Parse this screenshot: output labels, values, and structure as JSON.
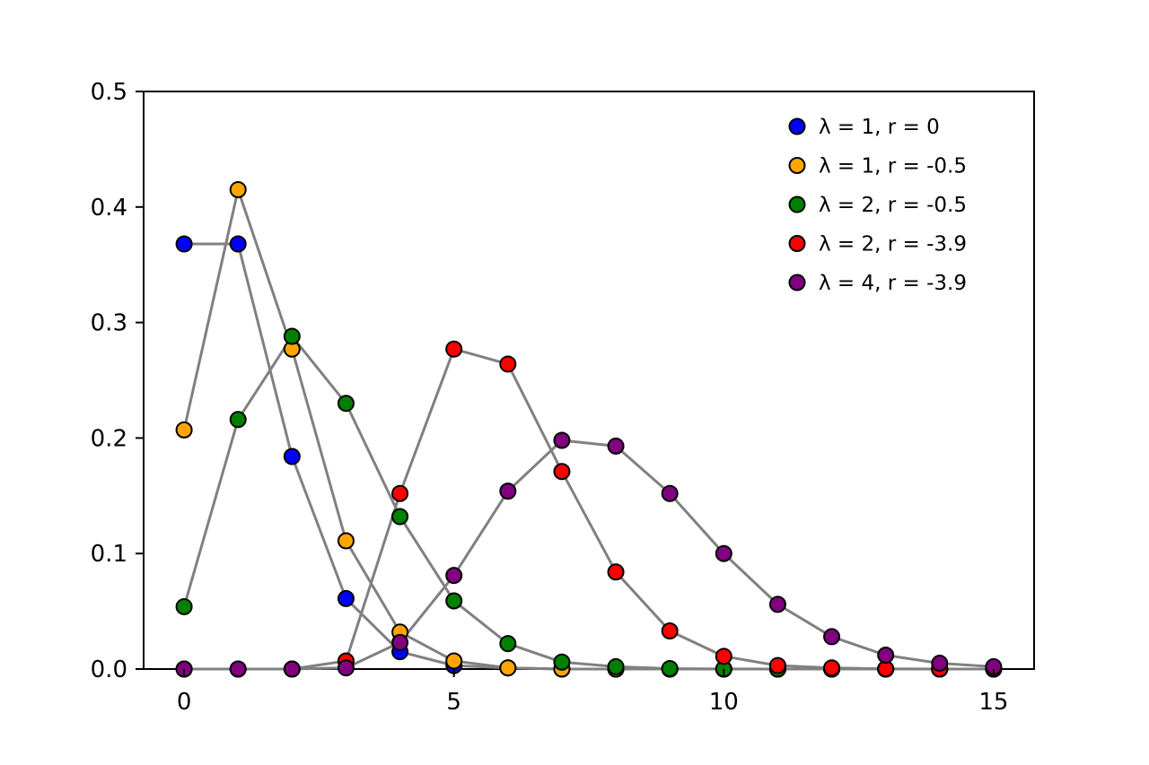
{
  "chart_data": {
    "type": "scatter",
    "title": "",
    "xlabel": "",
    "ylabel": "",
    "xlim": [
      -0.75,
      15.75
    ],
    "ylim": [
      0,
      0.5
    ],
    "grid": false,
    "legend_position": "top-right",
    "line_color": "#808080",
    "xticks": [
      "0",
      "5",
      "10",
      "15"
    ],
    "yticks": [
      "0.0",
      "0.1",
      "0.2",
      "0.3",
      "0.4",
      "0.5"
    ],
    "series": [
      {
        "name": "λ = 1, r = 0",
        "color": "#0000ff",
        "x": [
          0,
          1,
          2,
          3,
          4,
          5,
          6,
          7,
          8,
          9,
          10,
          11,
          12,
          13,
          14,
          15
        ],
        "y": [
          0.368,
          0.368,
          0.184,
          0.061,
          0.015,
          0.003,
          0.001,
          0,
          0,
          0,
          0,
          0,
          0,
          0,
          0,
          0
        ]
      },
      {
        "name": "λ = 1, r = -0.5",
        "color": "#ffa500",
        "x": [
          0,
          1,
          2,
          3,
          4,
          5,
          6,
          7,
          8,
          9,
          10,
          11,
          12,
          13,
          14,
          15
        ],
        "y": [
          0.207,
          0.415,
          0.277,
          0.111,
          0.032,
          0.007,
          0.001,
          0,
          0,
          0,
          0,
          0,
          0,
          0,
          0,
          0
        ]
      },
      {
        "name": "λ = 2, r = -0.5",
        "color": "#008000",
        "x": [
          0,
          1,
          2,
          3,
          4,
          5,
          6,
          7,
          8,
          9,
          10,
          11,
          12,
          13,
          14,
          15
        ],
        "y": [
          0.054,
          0.216,
          0.288,
          0.23,
          0.132,
          0.059,
          0.022,
          0.006,
          0.002,
          0.0004,
          0.0001,
          0,
          0,
          0,
          0,
          0
        ]
      },
      {
        "name": "λ = 2, r = -3.9",
        "color": "#ff0000",
        "x": [
          0,
          1,
          2,
          3,
          4,
          5,
          6,
          7,
          8,
          9,
          10,
          11,
          12,
          13,
          14,
          15
        ],
        "y": [
          0,
          0,
          0,
          0.007,
          0.152,
          0.277,
          0.264,
          0.171,
          0.084,
          0.033,
          0.011,
          0.003,
          0.001,
          0.0002,
          0,
          0
        ]
      },
      {
        "name": "λ = 4, r = -3.9",
        "color": "#800080",
        "x": [
          0,
          1,
          2,
          3,
          4,
          5,
          6,
          7,
          8,
          9,
          10,
          11,
          12,
          13,
          14,
          15
        ],
        "y": [
          0,
          0,
          0,
          0.001,
          0.023,
          0.081,
          0.154,
          0.198,
          0.193,
          0.152,
          0.1,
          0.056,
          0.028,
          0.012,
          0.005,
          0.002
        ]
      }
    ]
  }
}
